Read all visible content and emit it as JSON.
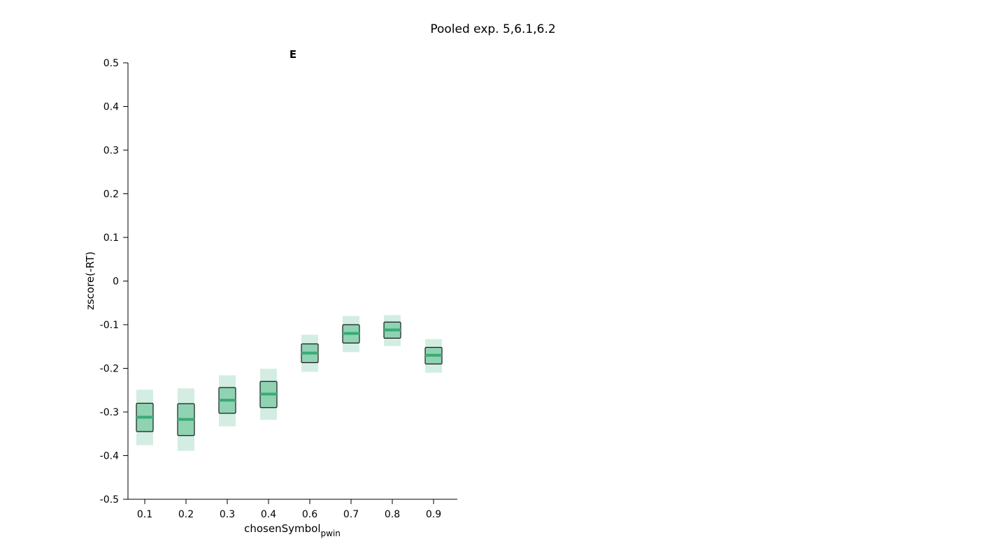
{
  "figure": {
    "suptitle": "Pooled exp. 5,6.1,6.2"
  },
  "chart_data": {
    "type": "box",
    "title": "E",
    "xlabel": "chosenSymbol",
    "xlabel_subscript": "pwin",
    "ylabel": "zscore(-RT)",
    "ylim": [
      -0.5,
      0.5
    ],
    "yticks": [
      -0.5,
      -0.4,
      -0.3,
      -0.2,
      -0.1,
      0,
      0.1,
      0.2,
      0.3,
      0.4,
      0.5
    ],
    "ytick_labels": [
      "-0.5",
      "-0.4",
      "-0.3",
      "-0.2",
      "-0.1",
      "0",
      "0.1",
      "0.2",
      "0.3",
      "0.4",
      "0.5"
    ],
    "categories": [
      "0.1",
      "0.2",
      "0.3",
      "0.4",
      "0.6",
      "0.7",
      "0.8",
      "0.9"
    ],
    "colors": {
      "mean_line": "#3aaa78",
      "box_fill": "#8fd3b3",
      "ci_fill": "#d3ede2",
      "box_edge": "#1a1a1a"
    },
    "series": [
      {
        "category": "0.1",
        "mean": -0.312,
        "sem_low": -0.345,
        "sem_high": -0.28,
        "ci_low": -0.376,
        "ci_high": -0.249
      },
      {
        "category": "0.2",
        "mean": -0.317,
        "sem_low": -0.354,
        "sem_high": -0.281,
        "ci_low": -0.389,
        "ci_high": -0.246
      },
      {
        "category": "0.3",
        "mean": -0.273,
        "sem_low": -0.303,
        "sem_high": -0.244,
        "ci_low": -0.333,
        "ci_high": -0.216
      },
      {
        "category": "0.4",
        "mean": -0.259,
        "sem_low": -0.29,
        "sem_high": -0.23,
        "ci_low": -0.318,
        "ci_high": -0.201
      },
      {
        "category": "0.6",
        "mean": -0.165,
        "sem_low": -0.187,
        "sem_high": -0.144,
        "ci_low": -0.208,
        "ci_high": -0.123
      },
      {
        "category": "0.7",
        "mean": -0.12,
        "sem_low": -0.142,
        "sem_high": -0.1,
        "ci_low": -0.163,
        "ci_high": -0.08
      },
      {
        "category": "0.8",
        "mean": -0.112,
        "sem_low": -0.131,
        "sem_high": -0.094,
        "ci_low": -0.149,
        "ci_high": -0.078
      },
      {
        "category": "0.9",
        "mean": -0.17,
        "sem_low": -0.19,
        "sem_high": -0.152,
        "ci_low": -0.21,
        "ci_high": -0.133
      }
    ]
  }
}
